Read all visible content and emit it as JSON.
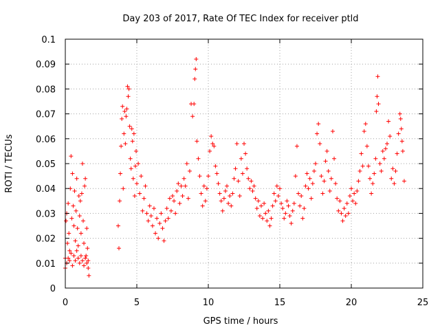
{
  "chart_data": {
    "type": "scatter",
    "title": "Day 203 of 2017, Rate Of TEC Index for receiver ptld",
    "xlabel": "GPS time / hours",
    "ylabel": "ROTI / TECUs",
    "xlim": [
      0,
      25
    ],
    "ylim": [
      0,
      0.1
    ],
    "xticks": [
      "0",
      "5",
      "10",
      "15",
      "20",
      "25"
    ],
    "yticks": [
      "0",
      "0.01",
      "0.02",
      "0.03",
      "0.04",
      "0.05",
      "0.06",
      "0.07",
      "0.08",
      "0.09",
      "0.1"
    ],
    "grid": true,
    "marker": "plus",
    "color": "#ff0000",
    "series": [
      {
        "points": [
          [
            0.0,
            0.012
          ],
          [
            0.05,
            0.027
          ],
          [
            0.1,
            0.03
          ],
          [
            0.15,
            0.018
          ],
          [
            0.2,
            0.034
          ],
          [
            0.25,
            0.022
          ],
          [
            0.3,
            0.015
          ],
          [
            0.35,
            0.04
          ],
          [
            0.4,
            0.053
          ],
          [
            0.45,
            0.028
          ],
          [
            0.5,
            0.046
          ],
          [
            0.55,
            0.033
          ],
          [
            0.6,
            0.025
          ],
          [
            0.65,
            0.039
          ],
          [
            0.7,
            0.019
          ],
          [
            0.75,
            0.031
          ],
          [
            0.8,
            0.044
          ],
          [
            0.85,
            0.024
          ],
          [
            0.9,
            0.017
          ],
          [
            0.95,
            0.037
          ],
          [
            1.0,
            0.029
          ],
          [
            1.05,
            0.035
          ],
          [
            1.1,
            0.022
          ],
          [
            1.15,
            0.038
          ],
          [
            1.2,
            0.05
          ],
          [
            1.25,
            0.027
          ],
          [
            1.3,
            0.018
          ],
          [
            1.35,
            0.041
          ],
          [
            1.4,
            0.044
          ],
          [
            1.45,
            0.013
          ],
          [
            1.5,
            0.024
          ],
          [
            1.55,
            0.016
          ],
          [
            1.6,
            0.008
          ],
          [
            1.65,
            0.005
          ],
          [
            0.0,
            0.008
          ],
          [
            0.1,
            0.01
          ],
          [
            0.2,
            0.012
          ],
          [
            0.3,
            0.011
          ],
          [
            0.4,
            0.014
          ],
          [
            0.5,
            0.009
          ],
          [
            0.6,
            0.013
          ],
          [
            0.7,
            0.011
          ],
          [
            0.8,
            0.015
          ],
          [
            0.9,
            0.012
          ],
          [
            1.0,
            0.01
          ],
          [
            1.1,
            0.013
          ],
          [
            1.2,
            0.011
          ],
          [
            1.3,
            0.009
          ],
          [
            1.4,
            0.012
          ],
          [
            1.5,
            0.01
          ],
          [
            1.6,
            0.011
          ],
          [
            3.7,
            0.025
          ],
          [
            3.75,
            0.016
          ],
          [
            3.8,
            0.035
          ],
          [
            3.85,
            0.046
          ],
          [
            3.9,
            0.057
          ],
          [
            3.95,
            0.068
          ],
          [
            4.0,
            0.073
          ],
          [
            4.05,
            0.04
          ],
          [
            4.1,
            0.062
          ],
          [
            4.15,
            0.071
          ],
          [
            4.2,
            0.058
          ],
          [
            4.25,
            0.069
          ],
          [
            4.3,
            0.072
          ],
          [
            4.35,
            0.081
          ],
          [
            4.4,
            0.077
          ],
          [
            4.45,
            0.08
          ],
          [
            4.5,
            0.065
          ],
          [
            4.55,
            0.052
          ],
          [
            4.6,
            0.048
          ],
          [
            4.65,
            0.064
          ],
          [
            4.7,
            0.059
          ],
          [
            4.75,
            0.044
          ],
          [
            4.8,
            0.062
          ],
          [
            4.85,
            0.037
          ],
          [
            4.9,
            0.049
          ],
          [
            4.95,
            0.055
          ],
          [
            5.0,
            0.042
          ],
          [
            5.1,
            0.05
          ],
          [
            5.2,
            0.038
          ],
          [
            5.3,
            0.045
          ],
          [
            5.4,
            0.031
          ],
          [
            5.5,
            0.036
          ],
          [
            5.6,
            0.041
          ],
          [
            5.7,
            0.03
          ],
          [
            5.8,
            0.027
          ],
          [
            5.9,
            0.033
          ],
          [
            6.0,
            0.029
          ],
          [
            6.1,
            0.025
          ],
          [
            6.2,
            0.032
          ],
          [
            6.3,
            0.022
          ],
          [
            6.4,
            0.028
          ],
          [
            6.5,
            0.02
          ],
          [
            6.6,
            0.026
          ],
          [
            6.7,
            0.03
          ],
          [
            6.8,
            0.024
          ],
          [
            6.9,
            0.019
          ],
          [
            7.0,
            0.027
          ],
          [
            7.1,
            0.032
          ],
          [
            7.2,
            0.028
          ],
          [
            7.3,
            0.036
          ],
          [
            7.4,
            0.031
          ],
          [
            7.5,
            0.037
          ],
          [
            7.6,
            0.035
          ],
          [
            7.7,
            0.03
          ],
          [
            7.8,
            0.039
          ],
          [
            7.9,
            0.042
          ],
          [
            8.0,
            0.034
          ],
          [
            8.1,
            0.041
          ],
          [
            8.2,
            0.037
          ],
          [
            8.3,
            0.044
          ],
          [
            8.4,
            0.041
          ],
          [
            8.5,
            0.05
          ],
          [
            8.6,
            0.036
          ],
          [
            8.7,
            0.047
          ],
          [
            8.8,
            0.074
          ],
          [
            8.9,
            0.069
          ],
          [
            9.0,
            0.074
          ],
          [
            9.05,
            0.084
          ],
          [
            9.1,
            0.088
          ],
          [
            9.15,
            0.092
          ],
          [
            9.2,
            0.059
          ],
          [
            9.3,
            0.052
          ],
          [
            9.4,
            0.045
          ],
          [
            9.5,
            0.038
          ],
          [
            9.6,
            0.033
          ],
          [
            9.7,
            0.041
          ],
          [
            9.8,
            0.035
          ],
          [
            9.9,
            0.04
          ],
          [
            10.0,
            0.045
          ],
          [
            10.1,
            0.055
          ],
          [
            10.2,
            0.061
          ],
          [
            10.3,
            0.058
          ],
          [
            10.4,
            0.057
          ],
          [
            10.5,
            0.049
          ],
          [
            10.6,
            0.046
          ],
          [
            10.7,
            0.042
          ],
          [
            10.8,
            0.038
          ],
          [
            10.9,
            0.035
          ],
          [
            11.0,
            0.031
          ],
          [
            11.1,
            0.036
          ],
          [
            11.2,
            0.039
          ],
          [
            11.3,
            0.041
          ],
          [
            11.4,
            0.034
          ],
          [
            11.5,
            0.037
          ],
          [
            11.6,
            0.033
          ],
          [
            11.7,
            0.038
          ],
          [
            11.8,
            0.044
          ],
          [
            11.9,
            0.048
          ],
          [
            12.0,
            0.058
          ],
          [
            12.1,
            0.043
          ],
          [
            12.2,
            0.037
          ],
          [
            12.3,
            0.052
          ],
          [
            12.4,
            0.046
          ],
          [
            12.5,
            0.058
          ],
          [
            12.6,
            0.054
          ],
          [
            12.7,
            0.048
          ],
          [
            12.8,
            0.044
          ],
          [
            12.9,
            0.04
          ],
          [
            13.0,
            0.043
          ],
          [
            13.1,
            0.039
          ],
          [
            13.2,
            0.041
          ],
          [
            13.3,
            0.036
          ],
          [
            13.4,
            0.032
          ],
          [
            13.5,
            0.035
          ],
          [
            13.6,
            0.029
          ],
          [
            13.7,
            0.033
          ],
          [
            13.8,
            0.028
          ],
          [
            13.9,
            0.034
          ],
          [
            14.0,
            0.03
          ],
          [
            14.1,
            0.027
          ],
          [
            14.2,
            0.031
          ],
          [
            14.3,
            0.025
          ],
          [
            14.4,
            0.028
          ],
          [
            14.5,
            0.033
          ],
          [
            14.6,
            0.038
          ],
          [
            14.7,
            0.035
          ],
          [
            14.8,
            0.041
          ],
          [
            14.9,
            0.037
          ],
          [
            15.0,
            0.04
          ],
          [
            15.1,
            0.034
          ],
          [
            15.2,
            0.032
          ],
          [
            15.3,
            0.028
          ],
          [
            15.4,
            0.03
          ],
          [
            15.5,
            0.035
          ],
          [
            15.6,
            0.033
          ],
          [
            15.7,
            0.029
          ],
          [
            15.8,
            0.026
          ],
          [
            15.9,
            0.031
          ],
          [
            16.0,
            0.034
          ],
          [
            16.1,
            0.045
          ],
          [
            16.2,
            0.057
          ],
          [
            16.3,
            0.038
          ],
          [
            16.4,
            0.033
          ],
          [
            16.5,
            0.037
          ],
          [
            16.6,
            0.028
          ],
          [
            16.7,
            0.032
          ],
          [
            16.8,
            0.041
          ],
          [
            16.9,
            0.046
          ],
          [
            17.0,
            0.04
          ],
          [
            17.1,
            0.044
          ],
          [
            17.2,
            0.036
          ],
          [
            17.3,
            0.042
          ],
          [
            17.4,
            0.047
          ],
          [
            17.5,
            0.05
          ],
          [
            17.6,
            0.062
          ],
          [
            17.7,
            0.066
          ],
          [
            17.8,
            0.058
          ],
          [
            17.9,
            0.045
          ],
          [
            18.0,
            0.038
          ],
          [
            18.1,
            0.043
          ],
          [
            18.2,
            0.051
          ],
          [
            18.3,
            0.055
          ],
          [
            18.4,
            0.047
          ],
          [
            18.5,
            0.039
          ],
          [
            18.6,
            0.044
          ],
          [
            18.7,
            0.063
          ],
          [
            18.8,
            0.052
          ],
          [
            18.9,
            0.042
          ],
          [
            19.0,
            0.036
          ],
          [
            19.1,
            0.031
          ],
          [
            19.2,
            0.035
          ],
          [
            19.3,
            0.03
          ],
          [
            19.4,
            0.027
          ],
          [
            19.5,
            0.032
          ],
          [
            19.6,
            0.029
          ],
          [
            19.7,
            0.034
          ],
          [
            19.8,
            0.03
          ],
          [
            19.9,
            0.037
          ],
          [
            20.0,
            0.04
          ],
          [
            20.1,
            0.035
          ],
          [
            20.2,
            0.038
          ],
          [
            20.3,
            0.034
          ],
          [
            20.4,
            0.039
          ],
          [
            20.5,
            0.043
          ],
          [
            20.6,
            0.047
          ],
          [
            20.7,
            0.054
          ],
          [
            20.8,
            0.049
          ],
          [
            20.9,
            0.063
          ],
          [
            21.0,
            0.066
          ],
          [
            21.1,
            0.057
          ],
          [
            21.2,
            0.049
          ],
          [
            21.3,
            0.044
          ],
          [
            21.4,
            0.038
          ],
          [
            21.5,
            0.042
          ],
          [
            21.6,
            0.046
          ],
          [
            21.7,
            0.052
          ],
          [
            21.75,
            0.071
          ],
          [
            21.8,
            0.077
          ],
          [
            21.85,
            0.085
          ],
          [
            21.9,
            0.074
          ],
          [
            22.0,
            0.05
          ],
          [
            22.1,
            0.047
          ],
          [
            22.2,
            0.055
          ],
          [
            22.3,
            0.052
          ],
          [
            22.4,
            0.056
          ],
          [
            22.5,
            0.058
          ],
          [
            22.6,
            0.067
          ],
          [
            22.7,
            0.061
          ],
          [
            22.8,
            0.044
          ],
          [
            22.9,
            0.048
          ],
          [
            23.0,
            0.042
          ],
          [
            23.1,
            0.047
          ],
          [
            23.2,
            0.054
          ],
          [
            23.3,
            0.062
          ],
          [
            23.4,
            0.07
          ],
          [
            23.45,
            0.068
          ],
          [
            23.5,
            0.064
          ],
          [
            23.55,
            0.059
          ],
          [
            23.6,
            0.055
          ],
          [
            23.7,
            0.043
          ]
        ]
      }
    ]
  }
}
